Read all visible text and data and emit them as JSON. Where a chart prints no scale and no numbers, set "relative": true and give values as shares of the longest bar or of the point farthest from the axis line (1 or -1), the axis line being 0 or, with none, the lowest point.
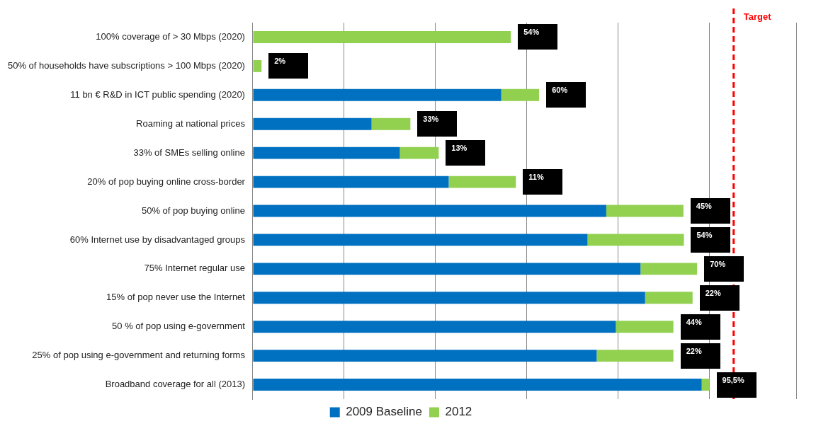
{
  "chart_data": {
    "type": "bar",
    "orientation": "horizontal",
    "stacked": true,
    "relative": true,
    "grid": "x",
    "legend": "bottom",
    "categories": [
      "100% coverage of > 30 Mbps (2020)",
      "50% of households have subscriptions > 100 Mbps (2020)",
      "11 bn € R&D in ICT public spending (2020)",
      "Roaming at national prices",
      "33% of SMEs selling online",
      "20% of pop buying online cross-border",
      "50% of pop buying online",
      "60% Internet use by disadvantaged groups",
      "75% Internet regular use",
      "15% of pop never use the Internet",
      "50 % of pop using e-government",
      "25% of pop using e-government and returning forms",
      "Broadband coverage for all (2013)"
    ],
    "series": [
      {
        "name": "2009 Baseline",
        "color": "#0070c0",
        "values": [
          0,
          0,
          0.544,
          0.26,
          0.322,
          0.429,
          0.774,
          0.733,
          0.849,
          0.859,
          0.795,
          0.753,
          0.983
        ]
      },
      {
        "name": "2012",
        "color": "#92d050",
        "values": [
          0.565,
          0.019,
          0.083,
          0.085,
          0.085,
          0.147,
          0.169,
          0.211,
          0.124,
          0.104,
          0.126,
          0.168,
          0.017
        ]
      }
    ],
    "annotations": [
      {
        "text": "54%",
        "x": 0.565,
        "y": "100% coverage of > 30 Mbps (2020)"
      },
      {
        "text": "2%",
        "x": 0.019,
        "y": "50% of households have subscriptions > 100 Mbps (2020)"
      },
      {
        "text": "60%",
        "x": 0.627,
        "y": "11 bn € R&D in ICT public spending (2020)"
      },
      {
        "text": "33%",
        "x": 0.345,
        "y": "Roaming at national prices"
      },
      {
        "text": "13%",
        "x": 0.407,
        "y": "33% of SMEs selling online"
      },
      {
        "text": "11%",
        "x": 0.576,
        "y": "20% of pop buying online cross-border"
      },
      {
        "text": "45%",
        "x": 0.943,
        "y": "50% of pop buying online"
      },
      {
        "text": "54%",
        "x": 0.944,
        "y": "60% Internet use by disadvantaged groups"
      },
      {
        "text": "70%",
        "x": 0.973,
        "y": "75% Internet regular use"
      },
      {
        "text": "22%",
        "x": 0.963,
        "y": "15% of pop never use the Internet"
      },
      {
        "text": "44%",
        "x": 0.921,
        "y": "50 % of pop using e-government"
      },
      {
        "text": "22%",
        "x": 0.921,
        "y": "25% of pop using e-government and returning forms"
      },
      {
        "text": "95,5%",
        "x": 1.0,
        "y": "Broadband coverage for all (2013)"
      }
    ],
    "ref_lines": [
      {
        "axis": "x",
        "value": 1.053,
        "label": "Target",
        "color": "#ff0000",
        "line_style": "dashed"
      }
    ]
  }
}
